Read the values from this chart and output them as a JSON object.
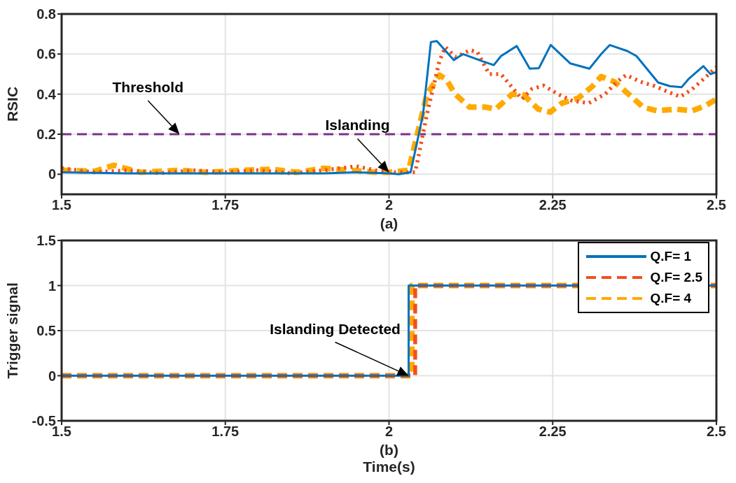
{
  "chart_data": [
    {
      "type": "line",
      "xlabel": "(a)",
      "ylabel": "RSIC",
      "xlim": [
        1.5,
        2.5
      ],
      "xticks": [
        1.5,
        1.75,
        2,
        2.25,
        2.5
      ],
      "ylim": [
        -0.1,
        0.8
      ],
      "yticks": [
        0,
        0.2,
        0.4,
        0.6,
        0.8
      ],
      "grid": true,
      "legend": false,
      "series": [
        {
          "color": "#0072bd",
          "line_style": "solid",
          "x": [
            1.5,
            1.6,
            1.7,
            1.8,
            1.9,
            1.95,
            2.0,
            2.015,
            2.033,
            2.052,
            2.064,
            2.073,
            2.099,
            2.113,
            2.142,
            2.16,
            2.171,
            2.195,
            2.215,
            2.229,
            2.247,
            2.277,
            2.306,
            2.324,
            2.337,
            2.364,
            2.378,
            2.411,
            2.429,
            2.447,
            2.458,
            2.48,
            2.491,
            2.5
          ],
          "values": [
            0.01,
            0.005,
            0.005,
            0.005,
            0.005,
            0.01,
            0.005,
            0.0,
            0.01,
            0.3,
            0.66,
            0.665,
            0.57,
            0.6,
            0.565,
            0.545,
            0.59,
            0.64,
            0.527,
            0.53,
            0.645,
            0.553,
            0.527,
            0.6,
            0.645,
            0.615,
            0.59,
            0.458,
            0.44,
            0.435,
            0.477,
            0.54,
            0.5,
            0.51
          ]
        },
        {
          "color": "#f2501c",
          "line_style": "dotted",
          "x": [
            1.5,
            1.55,
            1.6,
            1.65,
            1.7,
            1.75,
            1.8,
            1.85,
            1.9,
            1.95,
            1.98,
            2.0,
            2.04,
            2.058,
            2.077,
            2.086,
            2.102,
            2.124,
            2.135,
            2.153,
            2.171,
            2.189,
            2.203,
            2.218,
            2.236,
            2.258,
            2.28,
            2.305,
            2.33,
            2.348,
            2.362,
            2.384,
            2.406,
            2.427,
            2.445,
            2.463,
            2.481,
            2.5
          ],
          "values": [
            0.03,
            0.01,
            0.02,
            0.005,
            0.02,
            0.01,
            0.02,
            0.005,
            0.02,
            0.04,
            0.02,
            0.01,
            0.01,
            0.3,
            0.565,
            0.635,
            0.585,
            0.62,
            0.61,
            0.5,
            0.5,
            0.43,
            0.375,
            0.425,
            0.443,
            0.4,
            0.367,
            0.355,
            0.4,
            0.462,
            0.495,
            0.462,
            0.44,
            0.41,
            0.387,
            0.425,
            0.477,
            0.535
          ]
        },
        {
          "color": "#ffaa00",
          "line_style": "dashed",
          "x": [
            1.5,
            1.55,
            1.58,
            1.62,
            1.68,
            1.72,
            1.78,
            1.82,
            1.86,
            1.9,
            1.94,
            1.98,
            2.0,
            2.03,
            2.058,
            2.077,
            2.087,
            2.101,
            2.123,
            2.148,
            2.163,
            2.188,
            2.206,
            2.228,
            2.246,
            2.264,
            2.289,
            2.311,
            2.324,
            2.344,
            2.366,
            2.388,
            2.409,
            2.438,
            2.463,
            2.482,
            2.5
          ],
          "values": [
            0.02,
            0.015,
            0.045,
            0.01,
            0.02,
            0.01,
            0.02,
            0.025,
            0.01,
            0.03,
            0.02,
            0.01,
            0.01,
            0.02,
            0.4,
            0.495,
            0.475,
            0.4,
            0.335,
            0.335,
            0.325,
            0.4,
            0.395,
            0.325,
            0.31,
            0.355,
            0.38,
            0.44,
            0.488,
            0.462,
            0.4,
            0.335,
            0.317,
            0.325,
            0.317,
            0.34,
            0.375
          ]
        }
      ],
      "ref_lines": [
        {
          "axis": "y",
          "value": 0.2,
          "color": "#7e2f8e",
          "line_style": "dashed"
        }
      ],
      "annotations": [
        {
          "text": "Threshold",
          "x": 1.68,
          "y": 0.2
        },
        {
          "text": "Islanding",
          "x": 2.0,
          "y": 0.01
        }
      ]
    },
    {
      "type": "step",
      "xlabel": "Time(s)",
      "ylabel": "Trigger signal",
      "xlim": [
        1.5,
        2.5
      ],
      "xticks": [
        1.5,
        1.75,
        2,
        2.25,
        2.5
      ],
      "ylim": [
        -0.5,
        1.5
      ],
      "yticks": [
        -0.5,
        0,
        0.5,
        1,
        1.5
      ],
      "grid": true,
      "legend": "top right",
      "series": [
        {
          "name": "Q.F= 1",
          "color": "#0072bd",
          "line_style": "solid",
          "x": [
            1.5,
            2.03,
            2.5
          ],
          "values": [
            0,
            1,
            1
          ]
        },
        {
          "name": "Q.F= 2.5",
          "color": "#f2501c",
          "line_style": "dashed",
          "x": [
            1.5,
            2.04,
            2.5
          ],
          "values": [
            0,
            1,
            1
          ]
        },
        {
          "name": "Q.F= 4",
          "color": "#ffaa00",
          "line_style": "dashed",
          "x": [
            1.5,
            2.035,
            2.5
          ],
          "values": [
            0,
            1,
            1
          ]
        }
      ],
      "annotations": [
        {
          "text": "Islanding Detected",
          "x": 2.03,
          "y": 0
        },
        "(b)"
      ]
    }
  ]
}
